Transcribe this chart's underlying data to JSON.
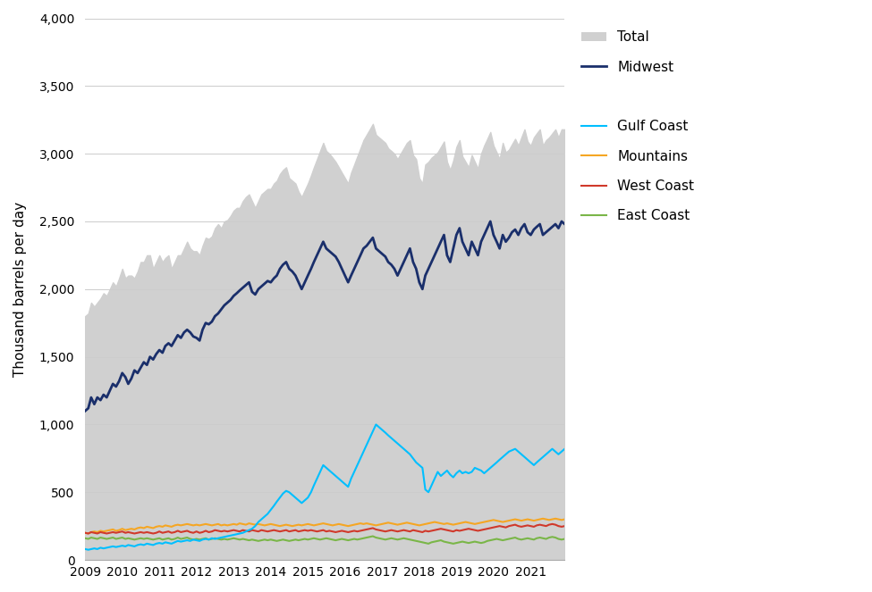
{
  "title": "",
  "ylabel": "Thousand barrels per day",
  "background_color": "#ffffff",
  "plot_bg_color": "#ffffff",
  "grid_color": "#cccccc",
  "total_color": "#d0d0d0",
  "midwest_color": "#1a2f6b",
  "gulf_color": "#00bfff",
  "mountains_color": "#f5a623",
  "westcoast_color": "#d0392b",
  "eastcoast_color": "#7ab648",
  "ylim": [
    0,
    4000
  ],
  "yticks": [
    0,
    500,
    1000,
    1500,
    2000,
    2500,
    3000,
    3500,
    4000
  ],
  "start_year": 2009,
  "start_month": 1,
  "n_months": 156,
  "midwest": [
    1100,
    1120,
    1200,
    1150,
    1200,
    1180,
    1220,
    1200,
    1250,
    1300,
    1280,
    1320,
    1380,
    1350,
    1300,
    1340,
    1400,
    1380,
    1420,
    1460,
    1440,
    1500,
    1480,
    1520,
    1550,
    1530,
    1580,
    1600,
    1580,
    1620,
    1660,
    1640,
    1680,
    1700,
    1680,
    1650,
    1640,
    1620,
    1700,
    1750,
    1740,
    1760,
    1800,
    1820,
    1850,
    1880,
    1900,
    1920,
    1950,
    1970,
    1990,
    2010,
    2030,
    2050,
    1980,
    1960,
    2000,
    2020,
    2040,
    2060,
    2050,
    2080,
    2100,
    2150,
    2180,
    2200,
    2150,
    2130,
    2100,
    2050,
    2000,
    2050,
    2100,
    2150,
    2200,
    2250,
    2300,
    2350,
    2300,
    2280,
    2260,
    2240,
    2200,
    2150,
    2100,
    2050,
    2100,
    2150,
    2200,
    2250,
    2300,
    2320,
    2350,
    2380,
    2300,
    2280,
    2260,
    2240,
    2200,
    2180,
    2150,
    2100,
    2150,
    2200,
    2250,
    2300,
    2200,
    2150,
    2050,
    2000,
    2100,
    2150,
    2200,
    2250,
    2300,
    2350,
    2400,
    2250,
    2200,
    2300,
    2400,
    2450,
    2350,
    2300,
    2250,
    2350,
    2300,
    2250,
    2350,
    2400,
    2450,
    2500,
    2400,
    2350,
    2300,
    2400,
    2350,
    2380,
    2420,
    2440,
    2400,
    2450,
    2480,
    2420,
    2400,
    2440,
    2460,
    2480,
    2400,
    2420,
    2440,
    2460,
    2480,
    2450,
    2500,
    2480
  ],
  "gulf": [
    80,
    75,
    80,
    85,
    80,
    90,
    85,
    90,
    95,
    100,
    95,
    100,
    105,
    100,
    110,
    105,
    100,
    110,
    115,
    110,
    120,
    115,
    110,
    120,
    125,
    120,
    130,
    125,
    120,
    130,
    140,
    135,
    140,
    145,
    140,
    150,
    145,
    140,
    150,
    155,
    150,
    160,
    155,
    160,
    165,
    170,
    175,
    180,
    185,
    190,
    195,
    200,
    210,
    220,
    230,
    250,
    280,
    300,
    320,
    340,
    370,
    400,
    430,
    460,
    490,
    510,
    500,
    480,
    460,
    440,
    420,
    440,
    460,
    500,
    550,
    600,
    650,
    700,
    680,
    660,
    640,
    620,
    600,
    580,
    560,
    540,
    600,
    650,
    700,
    750,
    800,
    850,
    900,
    950,
    1000,
    980,
    960,
    940,
    920,
    900,
    880,
    860,
    840,
    820,
    800,
    780,
    750,
    720,
    700,
    680,
    520,
    500,
    550,
    600,
    650,
    620,
    640,
    660,
    630,
    610,
    640,
    660,
    640,
    650,
    640,
    650,
    680,
    670,
    660,
    640,
    660,
    680,
    700,
    720,
    740,
    760,
    780,
    800,
    810,
    820,
    800,
    780,
    760,
    740,
    720,
    700,
    720,
    740,
    760,
    780,
    800,
    820,
    800,
    780,
    800,
    820
  ],
  "mountains": [
    200,
    195,
    205,
    210,
    205,
    215,
    210,
    215,
    220,
    225,
    215,
    220,
    230,
    220,
    225,
    230,
    225,
    235,
    240,
    235,
    245,
    240,
    235,
    245,
    250,
    245,
    255,
    250,
    245,
    255,
    260,
    255,
    260,
    265,
    260,
    255,
    260,
    255,
    260,
    265,
    260,
    255,
    260,
    265,
    255,
    260,
    255,
    260,
    265,
    260,
    270,
    265,
    260,
    270,
    265,
    260,
    265,
    260,
    255,
    260,
    265,
    260,
    255,
    250,
    255,
    260,
    255,
    250,
    255,
    260,
    255,
    260,
    265,
    260,
    255,
    260,
    265,
    270,
    265,
    260,
    255,
    260,
    265,
    260,
    255,
    250,
    255,
    260,
    265,
    270,
    265,
    270,
    265,
    260,
    255,
    260,
    265,
    270,
    275,
    270,
    265,
    260,
    265,
    270,
    275,
    270,
    265,
    260,
    255,
    260,
    265,
    270,
    275,
    280,
    275,
    270,
    265,
    270,
    265,
    260,
    265,
    270,
    275,
    280,
    275,
    270,
    265,
    270,
    275,
    280,
    285,
    290,
    295,
    290,
    285,
    280,
    285,
    290,
    295,
    300,
    295,
    290,
    295,
    300,
    295,
    290,
    295,
    300,
    305,
    300,
    295,
    300,
    305,
    300,
    295,
    300
  ],
  "westcoast": [
    200,
    195,
    205,
    200,
    195,
    205,
    200,
    195,
    200,
    205,
    200,
    205,
    210,
    200,
    205,
    200,
    195,
    200,
    205,
    200,
    205,
    200,
    195,
    200,
    210,
    200,
    205,
    210,
    200,
    205,
    215,
    205,
    210,
    215,
    205,
    200,
    210,
    200,
    205,
    215,
    205,
    210,
    220,
    215,
    210,
    215,
    210,
    215,
    220,
    215,
    210,
    220,
    215,
    210,
    220,
    215,
    210,
    220,
    215,
    210,
    215,
    220,
    215,
    210,
    215,
    220,
    210,
    215,
    220,
    210,
    215,
    220,
    215,
    220,
    215,
    210,
    215,
    220,
    210,
    215,
    210,
    205,
    210,
    215,
    210,
    205,
    210,
    215,
    210,
    215,
    220,
    225,
    230,
    235,
    225,
    220,
    215,
    210,
    215,
    220,
    215,
    210,
    215,
    220,
    215,
    210,
    220,
    215,
    210,
    205,
    215,
    210,
    215,
    220,
    225,
    230,
    225,
    220,
    215,
    210,
    220,
    215,
    220,
    225,
    230,
    225,
    220,
    215,
    220,
    225,
    230,
    235,
    240,
    245,
    250,
    245,
    240,
    250,
    255,
    260,
    250,
    245,
    250,
    255,
    250,
    245,
    255,
    260,
    255,
    250,
    260,
    265,
    260,
    250,
    245,
    250
  ],
  "eastcoast": [
    160,
    155,
    165,
    160,
    155,
    165,
    160,
    155,
    160,
    165,
    155,
    160,
    165,
    155,
    160,
    155,
    150,
    155,
    160,
    155,
    160,
    155,
    150,
    155,
    160,
    150,
    155,
    160,
    150,
    155,
    165,
    155,
    160,
    165,
    155,
    150,
    155,
    150,
    155,
    160,
    150,
    155,
    160,
    155,
    150,
    155,
    150,
    155,
    160,
    155,
    150,
    155,
    150,
    145,
    150,
    145,
    140,
    145,
    150,
    145,
    150,
    145,
    140,
    145,
    150,
    145,
    140,
    145,
    150,
    145,
    150,
    155,
    150,
    155,
    160,
    155,
    150,
    155,
    160,
    155,
    150,
    145,
    150,
    155,
    150,
    145,
    150,
    155,
    150,
    155,
    160,
    165,
    170,
    175,
    165,
    160,
    155,
    150,
    155,
    160,
    155,
    150,
    155,
    160,
    155,
    150,
    145,
    140,
    135,
    130,
    125,
    120,
    130,
    135,
    140,
    145,
    135,
    130,
    125,
    120,
    125,
    130,
    135,
    130,
    125,
    130,
    135,
    130,
    125,
    130,
    140,
    145,
    150,
    155,
    150,
    145,
    150,
    155,
    160,
    165,
    155,
    150,
    155,
    160,
    155,
    150,
    160,
    165,
    160,
    155,
    165,
    170,
    165,
    155,
    150,
    155
  ],
  "total": [
    1800,
    1820,
    1900,
    1870,
    1900,
    1930,
    1970,
    1950,
    2000,
    2050,
    2020,
    2080,
    2150,
    2080,
    2100,
    2100,
    2080,
    2130,
    2200,
    2200,
    2250,
    2250,
    2150,
    2200,
    2250,
    2200,
    2230,
    2250,
    2150,
    2200,
    2250,
    2250,
    2300,
    2350,
    2300,
    2280,
    2280,
    2250,
    2320,
    2380,
    2370,
    2390,
    2450,
    2480,
    2450,
    2500,
    2510,
    2540,
    2580,
    2600,
    2600,
    2650,
    2680,
    2700,
    2650,
    2600,
    2650,
    2700,
    2720,
    2740,
    2740,
    2780,
    2800,
    2850,
    2880,
    2900,
    2820,
    2800,
    2780,
    2720,
    2680,
    2730,
    2780,
    2840,
    2900,
    2960,
    3020,
    3080,
    3020,
    3000,
    2970,
    2940,
    2900,
    2860,
    2820,
    2780,
    2860,
    2920,
    2980,
    3040,
    3100,
    3140,
    3180,
    3220,
    3140,
    3120,
    3100,
    3080,
    3040,
    3020,
    3000,
    2960,
    3000,
    3040,
    3080,
    3100,
    2990,
    2960,
    2820,
    2780,
    2920,
    2940,
    2970,
    2990,
    3010,
    3050,
    3090,
    2940,
    2880,
    2950,
    3050,
    3100,
    2980,
    2940,
    2900,
    2990,
    2940,
    2890,
    3000,
    3060,
    3110,
    3160,
    3060,
    3010,
    2960,
    3080,
    3010,
    3030,
    3070,
    3110,
    3060,
    3120,
    3180,
    3090,
    3060,
    3120,
    3150,
    3180,
    3060,
    3100,
    3120,
    3150,
    3180,
    3120,
    3180,
    3180
  ],
  "legend_labels": [
    "Total",
    "Midwest",
    "Gulf Coast",
    "Mountains",
    "West Coast",
    "East Coast"
  ],
  "line_width": 1.5,
  "midwest_lw": 2.0
}
